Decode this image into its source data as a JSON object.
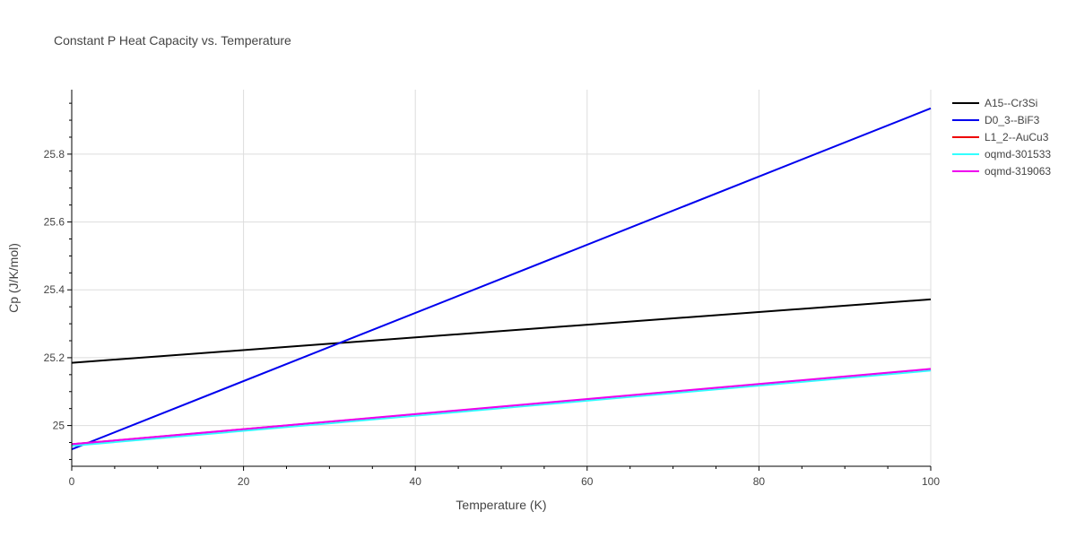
{
  "chart_data": {
    "type": "line",
    "title": "Constant P Heat Capacity vs. Temperature",
    "xlabel": "Temperature (K)",
    "ylabel": "Cp (J/K/mol)",
    "xlim": [
      0,
      100
    ],
    "ylim": [
      24.88,
      25.99
    ],
    "x_ticks": [
      0,
      20,
      40,
      60,
      80,
      100
    ],
    "y_ticks": [
      25,
      25.2,
      25.4,
      25.6,
      25.8
    ],
    "x_tick_labels": [
      "0",
      "20",
      "40",
      "60",
      "80",
      "100"
    ],
    "y_tick_labels": [
      "25",
      "25.2",
      "25.4",
      "25.6",
      "25.8"
    ],
    "grid": true,
    "legend_position": "top-right",
    "series": [
      {
        "name": "A15--Cr3Si",
        "color": "#000000",
        "x": [
          0,
          100
        ],
        "y": [
          25.185,
          25.372
        ]
      },
      {
        "name": "D0_3--BiF3",
        "color": "#0000ee",
        "x": [
          0,
          100
        ],
        "y": [
          24.93,
          25.935
        ]
      },
      {
        "name": "L1_2--AuCu3",
        "color": "#ee0000",
        "x": [
          0,
          100
        ],
        "y": [
          24.945,
          25.165
        ]
      },
      {
        "name": "oqmd-301533",
        "color": "#33ffff",
        "x": [
          0,
          100
        ],
        "y": [
          24.94,
          25.162
        ]
      },
      {
        "name": "oqmd-319063",
        "color": "#ee00ee",
        "x": [
          0,
          100
        ],
        "y": [
          24.945,
          25.167
        ]
      }
    ]
  }
}
